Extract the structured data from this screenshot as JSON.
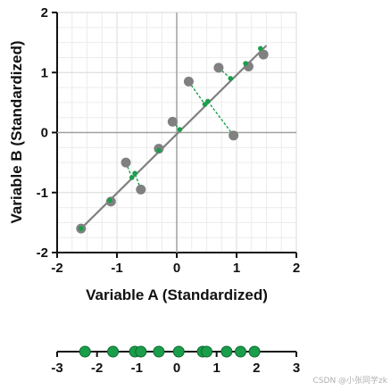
{
  "chart_data": [
    {
      "type": "scatter",
      "xlabel": "Variable A (Standardized)",
      "ylabel": "Variable B (Standardized)",
      "xlim": [
        -2,
        2
      ],
      "ylim": [
        -2,
        2
      ],
      "xticks": [
        "-2",
        "-1",
        "0",
        "1",
        "2"
      ],
      "yticks": [
        "-2",
        "-1",
        "0",
        "1",
        "2"
      ],
      "grid": true,
      "regression_line": {
        "x": [
          -1.65,
          1.5
        ],
        "y": [
          -1.65,
          1.45
        ]
      },
      "points": [
        {
          "x": -1.6,
          "y": -1.6,
          "proj_x": -1.6,
          "proj_y": -1.6
        },
        {
          "x": -1.1,
          "y": -1.15,
          "proj_x": -1.12,
          "proj_y": -1.13
        },
        {
          "x": -0.85,
          "y": -0.5,
          "proj_x": -0.75,
          "proj_y": -0.75
        },
        {
          "x": -0.6,
          "y": -0.95,
          "proj_x": -0.7,
          "proj_y": -0.68
        },
        {
          "x": -0.3,
          "y": -0.27,
          "proj_x": -0.3,
          "proj_y": -0.3
        },
        {
          "x": -0.07,
          "y": 0.18,
          "proj_x": 0.05,
          "proj_y": 0.05
        },
        {
          "x": 0.2,
          "y": 0.85,
          "proj_x": 0.47,
          "proj_y": 0.47
        },
        {
          "x": 0.95,
          "y": -0.05,
          "proj_x": 0.52,
          "proj_y": 0.52
        },
        {
          "x": 0.7,
          "y": 1.08,
          "proj_x": 0.9,
          "proj_y": 0.9
        },
        {
          "x": 1.2,
          "y": 1.1,
          "proj_x": 1.15,
          "proj_y": 1.15
        },
        {
          "x": 1.45,
          "y": 1.3,
          "proj_x": 1.4,
          "proj_y": 1.4
        }
      ],
      "colors": {
        "points": "#808080",
        "line": "#808080",
        "projection": "#1a9e4a"
      }
    },
    {
      "type": "scatter",
      "xlim": [
        -3,
        3
      ],
      "xticks": [
        "-3",
        "-2",
        "-1",
        "0",
        "1",
        "2",
        "3"
      ],
      "values": [
        -2.3,
        -1.6,
        -1.05,
        -0.9,
        -0.45,
        0.05,
        0.65,
        0.75,
        1.25,
        1.6,
        1.95
      ],
      "colors": {
        "points": "#1a9e4a"
      }
    }
  ],
  "watermark": "CSDN @小张同学zk"
}
